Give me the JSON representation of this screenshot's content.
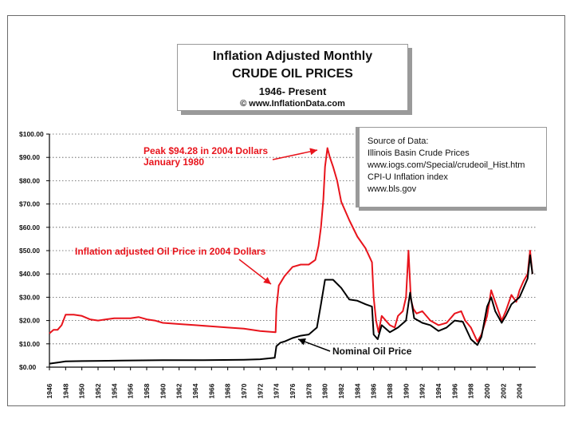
{
  "chart_data": {
    "type": "line",
    "title": "Inflation Adjusted Monthly",
    "subtitle": "CRUDE OIL PRICES",
    "period": "1946- Present",
    "copyright": "© www.InflationData.com",
    "ylim": [
      0,
      100
    ],
    "xlim": [
      1946,
      2006
    ],
    "y_ticks": [
      0,
      10,
      20,
      30,
      40,
      50,
      60,
      70,
      80,
      90,
      100
    ],
    "y_tick_labels": [
      "$0.00",
      "$10.00",
      "$20.00",
      "$30.00",
      "$40.00",
      "$50.00",
      "$60.00",
      "$70.00",
      "$80.00",
      "$90.00",
      "$100.00"
    ],
    "x_tick_labels": [
      "1946",
      "1948",
      "1950",
      "1952",
      "1954",
      "1956",
      "1958",
      "1960",
      "1962",
      "1964",
      "1966",
      "1968",
      "1970",
      "1972",
      "1974",
      "1976",
      "1978",
      "1980",
      "1982",
      "1984",
      "1986",
      "1988",
      "1990",
      "1992",
      "1994",
      "1996",
      "1998",
      "2000",
      "2002",
      "2004"
    ],
    "series": [
      {
        "name": "Inflation adjusted Oil Price in 2004 Dollars",
        "color": "#e8141c",
        "x": [
          1946,
          1946.5,
          1947,
          1947.5,
          1948,
          1949,
          1950,
          1951,
          1952,
          1953,
          1954,
          1955,
          1956,
          1957,
          1958,
          1959,
          1960,
          1962,
          1964,
          1966,
          1968,
          1970,
          1972,
          1973.9,
          1974,
          1974.3,
          1975,
          1976,
          1977,
          1978,
          1978.8,
          1979.2,
          1979.5,
          1979.8,
          1980,
          1980.3,
          1980.6,
          1981,
          1981.5,
          1982,
          1983,
          1984,
          1985,
          1985.8,
          1986,
          1986.3,
          1986.6,
          1987,
          1988,
          1988.6,
          1989,
          1989.6,
          1990,
          1990.3,
          1990.6,
          1990.9,
          1991.3,
          1992,
          1993,
          1994,
          1995,
          1996,
          1996.8,
          1997.3,
          1998,
          1998.8,
          1999.3,
          2000,
          2000.5,
          2001,
          2001.8,
          2002.3,
          2003,
          2003.6,
          2004,
          2004.5,
          2005,
          2005.3,
          2005.6
        ],
        "values": [
          14.5,
          16,
          16,
          18,
          22.5,
          22.5,
          22,
          20.5,
          20,
          20.5,
          21,
          21,
          21,
          21.5,
          20.5,
          20,
          19,
          18.5,
          18,
          17.5,
          17,
          16.5,
          15.5,
          15,
          25,
          35,
          39,
          43,
          44,
          44,
          46,
          52,
          60,
          72,
          86,
          94,
          90,
          86,
          80,
          71,
          63,
          56,
          51,
          45,
          30,
          20,
          15,
          22,
          18,
          17,
          22,
          24,
          30,
          50,
          29,
          25,
          23,
          24,
          20,
          18,
          19,
          23,
          24,
          20,
          17,
          11,
          14,
          22,
          33,
          28,
          20,
          24,
          31,
          28,
          33,
          37,
          40,
          50,
          40
        ]
      },
      {
        "name": "Nominal Oil Price",
        "color": "#000000",
        "x": [
          1946,
          1947,
          1948,
          1950,
          1955,
          1960,
          1965,
          1970,
          1972,
          1973.8,
          1974,
          1974.5,
          1975,
          1976,
          1977,
          1978,
          1979,
          1979.5,
          1980,
          1981,
          1982,
          1983,
          1984,
          1985,
          1985.8,
          1986,
          1986.5,
          1987,
          1988,
          1989,
          1990,
          1990.5,
          1991,
          1992,
          1993,
          1994,
          1995,
          1996,
          1997,
          1998,
          1998.8,
          1999.3,
          2000,
          2000.5,
          2001,
          2001.8,
          2002.3,
          2003,
          2004,
          2004.5,
          2005,
          2005.3,
          2005.6
        ],
        "values": [
          1.5,
          2,
          2.5,
          2.6,
          2.8,
          3,
          3,
          3.2,
          3.4,
          4,
          9,
          10.5,
          11,
          12.5,
          13.5,
          14,
          17,
          27,
          37.5,
          37.5,
          34,
          29,
          28.5,
          27,
          26,
          14,
          12,
          18,
          15,
          17,
          20,
          32,
          21,
          19,
          18,
          15.5,
          17,
          20,
          19.5,
          12,
          9.5,
          13,
          26,
          30,
          24,
          19,
          22,
          27,
          30,
          34,
          38,
          48,
          40
        ]
      }
    ]
  },
  "annotations": {
    "peak": [
      "Peak $94.28 in 2004 Dollars",
      "January 1980"
    ],
    "inflation_label": "Inflation adjusted Oil Price in 2004 Dollars",
    "nominal_label": "Nominal Oil Price"
  },
  "source": {
    "heading": "Source of Data:",
    "lines": [
      "Illinois Basin Crude Prices",
      "www.iogs.com/Special/crudeoil_Hist.htm",
      "CPI-U Inflation index",
      "www.bls.gov"
    ]
  }
}
